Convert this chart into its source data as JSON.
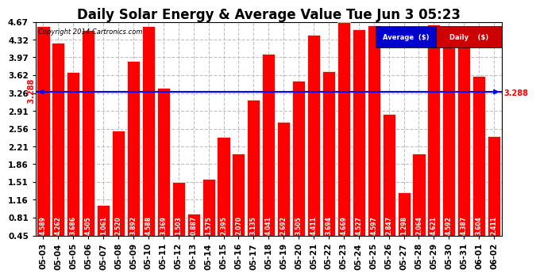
{
  "title": "Daily Solar Energy & Average Value Tue Jun 3 05:23",
  "copyright": "Copyright 2014 Cartronics.com",
  "categories": [
    "05-03",
    "05-04",
    "05-05",
    "05-06",
    "05-07",
    "05-08",
    "05-09",
    "05-10",
    "05-11",
    "05-12",
    "05-13",
    "05-14",
    "05-15",
    "05-16",
    "05-17",
    "05-18",
    "05-19",
    "05-20",
    "05-21",
    "05-22",
    "05-23",
    "05-24",
    "05-25",
    "05-26",
    "05-27",
    "05-28",
    "05-29",
    "05-30",
    "05-31",
    "06-01",
    "06-02"
  ],
  "values": [
    4.589,
    4.262,
    3.686,
    4.505,
    1.061,
    2.52,
    3.892,
    4.588,
    3.369,
    1.503,
    0.887,
    1.575,
    2.395,
    2.07,
    3.135,
    4.041,
    2.692,
    3.505,
    4.411,
    3.694,
    4.669,
    4.527,
    4.597,
    2.847,
    1.298,
    2.064,
    4.621,
    4.592,
    4.387,
    3.604,
    2.411
  ],
  "average": 3.288,
  "ymin": 0.45,
  "ymax": 4.67,
  "yticks": [
    0.45,
    0.81,
    1.16,
    1.51,
    1.86,
    2.21,
    2.56,
    2.91,
    3.26,
    3.62,
    3.97,
    4.32,
    4.67
  ],
  "bar_color": "#ff0000",
  "bar_edge_color": "#ffffff",
  "avg_line_color": "#0000ff",
  "avg_label_color": "#ff0000",
  "background_color": "#ffffff",
  "plot_bg_color": "#ffffff",
  "grid_color": "#bbbbbb",
  "title_fontsize": 12,
  "tick_fontsize": 7.5,
  "value_fontsize": 5.5,
  "legend_avg_bg": "#0000cc",
  "legend_daily_bg": "#cc0000",
  "legend_text_color": "#ffffff"
}
